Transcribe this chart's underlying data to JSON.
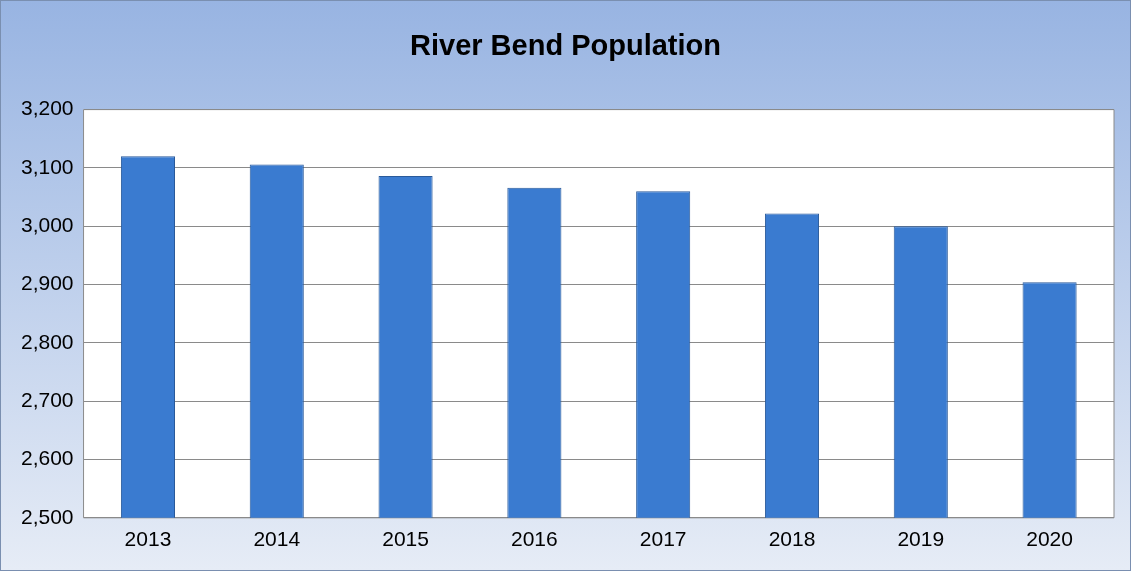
{
  "chart_data": {
    "type": "bar",
    "title": "River Bend Population",
    "categories": [
      "2013",
      "2014",
      "2015",
      "2016",
      "2017",
      "2018",
      "2019",
      "2020"
    ],
    "values": [
      3120,
      3106,
      3086,
      3066,
      3060,
      3022,
      3000,
      2904
    ],
    "color": "#3a7bd0",
    "ylim": [
      2500,
      3200
    ],
    "yticks": [
      {
        "value": 2500,
        "label": "2,500"
      },
      {
        "value": 2600,
        "label": "2,600"
      },
      {
        "value": 2700,
        "label": "2,700"
      },
      {
        "value": 2800,
        "label": "2,800"
      },
      {
        "value": 2900,
        "label": "2,900"
      },
      {
        "value": 3000,
        "label": "3,000"
      },
      {
        "value": 3100,
        "label": "3,100"
      },
      {
        "value": 3200,
        "label": "3,200"
      }
    ],
    "grid": "y",
    "legend": false
  }
}
